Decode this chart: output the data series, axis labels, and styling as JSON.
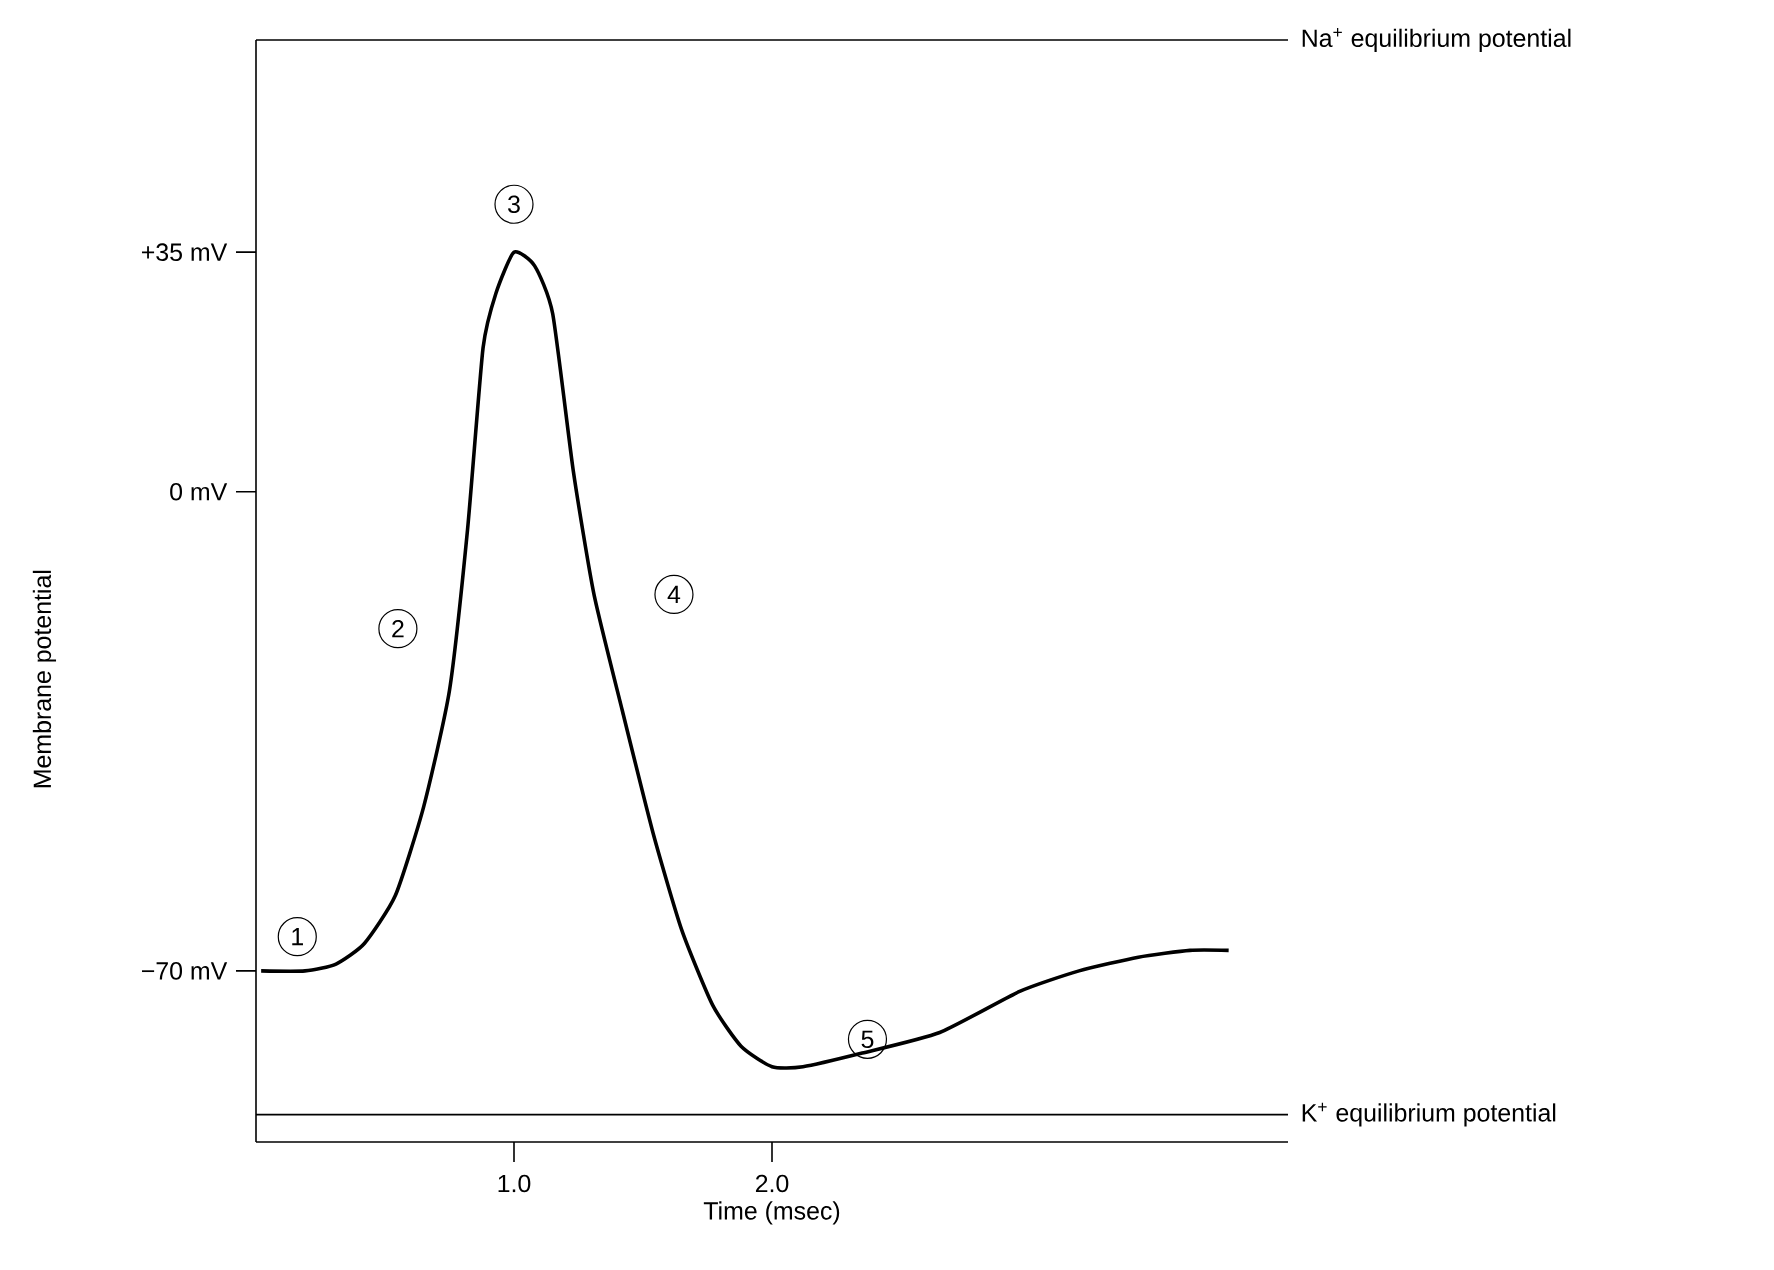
{
  "chart_data": {
    "type": "line",
    "xlabel": "Time (msec)",
    "ylabel": "Membrane potential",
    "x": [
      0.02,
      0.19,
      0.31,
      0.42,
      0.54,
      0.65,
      0.75,
      0.82,
      0.88,
      0.93,
      1.0,
      1.08,
      1.15,
      1.23,
      1.31,
      1.42,
      1.54,
      1.65,
      1.77,
      1.88,
      2.0,
      2.12,
      2.35,
      2.65,
      2.96,
      3.19,
      3.42,
      3.62,
      3.77
    ],
    "series": [
      {
        "color": "#000000",
        "values": [
          -70,
          -70,
          -69,
          -66,
          -59,
          -46,
          -29,
          -5.5,
          21,
          29,
          35,
          33,
          26,
          3,
          -15,
          -32,
          -50,
          -64,
          -75,
          -81,
          -84,
          -84,
          -82,
          -79,
          -73,
          -70,
          -68,
          -67,
          -67
        ]
      }
    ],
    "xlim": [
      0,
      4
    ],
    "ylim": [
      -95,
      66
    ],
    "xticks": [
      {
        "value": 1,
        "label": "1.0"
      },
      {
        "value": 2,
        "label": "2.0"
      }
    ],
    "yticks": [
      {
        "value": -70,
        "label": "−70 mV"
      },
      {
        "value": 0,
        "label": "0 mV"
      },
      {
        "value": 35,
        "label": "+35 mV"
      }
    ],
    "ref_lines": [
      {
        "axis": "y",
        "value": 66,
        "label": "Na$^{+}$ equilibrium potential"
      },
      {
        "axis": "y",
        "value": -91,
        "label": "K$^{+}$ equilibrium potential"
      }
    ],
    "annotations": [
      {
        "text": "1",
        "x": 0.16,
        "y": -65
      },
      {
        "text": "2",
        "x": 0.55,
        "y": -20
      },
      {
        "text": "3",
        "x": 1.0,
        "y": 42
      },
      {
        "text": "4",
        "x": 1.62,
        "y": -15
      },
      {
        "text": "5",
        "x": 2.37,
        "y": -80
      }
    ],
    "grid": false,
    "marker": "none",
    "line_style": "solid"
  }
}
